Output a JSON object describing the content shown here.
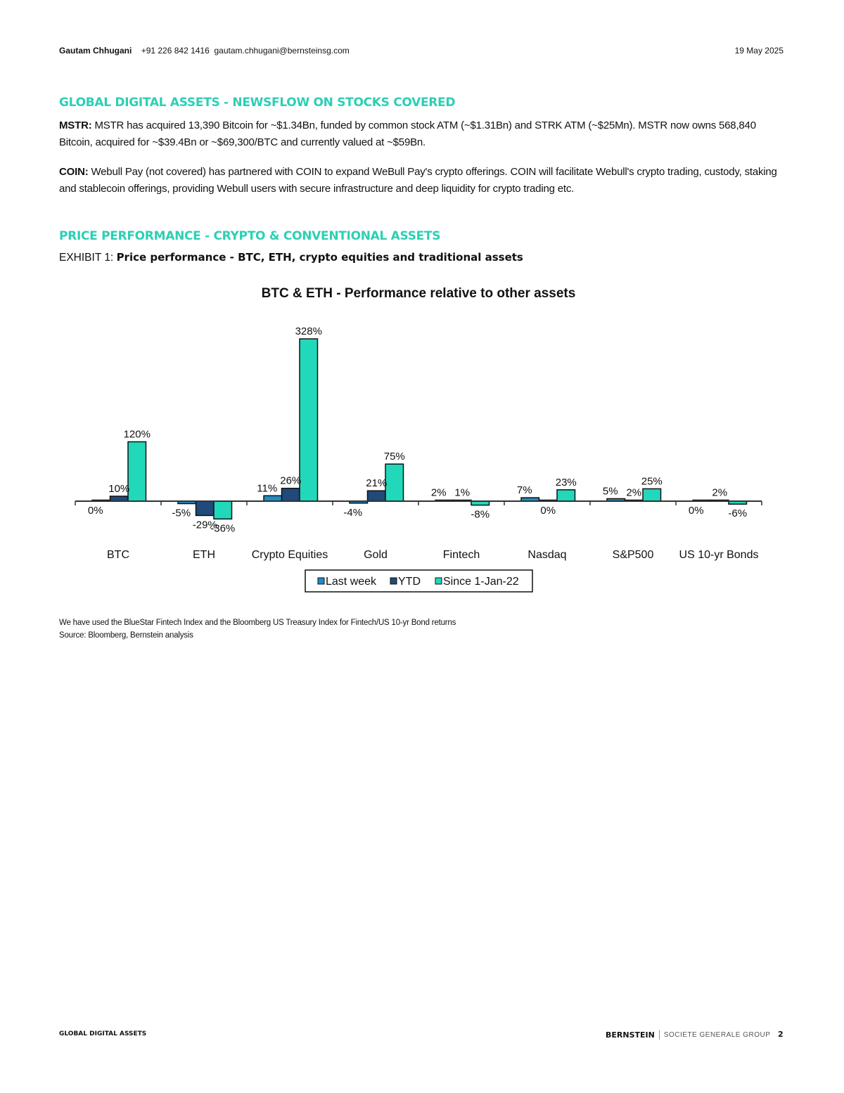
{
  "header": {
    "author": "Gautam Chhugani",
    "phone": "+91 226 842 1416",
    "email": "gautam.chhugani@bernsteinsg.com",
    "date": "19 May 2025"
  },
  "section1": {
    "title": "GLOBAL DIGITAL ASSETS - NEWSFLOW ON STOCKS COVERED",
    "items": [
      {
        "ticker": "MSTR:",
        "text": "MSTR has acquired 13,390 Bitcoin for ~$1.34Bn, funded by common stock ATM (~$1.31Bn) and STRK ATM (~$25Mn). MSTR now owns 568,840 Bitcoin, acquired for ~$39.4Bn or ~$69,300/BTC and currently valued at ~$59Bn."
      },
      {
        "ticker": "COIN:",
        "text": "Webull Pay (not covered) has partnered with COIN to expand WeBull Pay's crypto offerings. COIN will facilitate Webull's crypto trading, custody, staking and stablecoin offerings, providing Webull users with secure infrastructure and deep liquidity for crypto trading etc."
      }
    ]
  },
  "section2": {
    "title": "PRICE PERFORMANCE - CRYPTO & CONVENTIONAL ASSETS",
    "exhibit_label": "EXHIBIT 1:",
    "exhibit_title": "Price performance - BTC, ETH, crypto equities and traditional assets"
  },
  "chart_data": {
    "type": "bar",
    "title": "BTC & ETH - Performance relative to other assets",
    "categories": [
      "BTC",
      "ETH",
      "Crypto Equities",
      "Gold",
      "Fintech",
      "Nasdaq",
      "S&P500",
      "US 10-yr Bonds"
    ],
    "series": [
      {
        "name": "Last week",
        "color": "#1f8cc4",
        "values": [
          0,
          -5,
          11,
          -4,
          2,
          7,
          5,
          0
        ]
      },
      {
        "name": "YTD",
        "color": "#1f4a7a",
        "values": [
          10,
          -29,
          26,
          21,
          1,
          0,
          2,
          2
        ]
      },
      {
        "name": "Since 1-Jan-22",
        "color": "#22d8bb",
        "values": [
          120,
          -36,
          328,
          75,
          -8,
          23,
          25,
          -6
        ]
      }
    ],
    "unit": "%",
    "ylim": [
      -40,
      330
    ],
    "grid": false,
    "legend": "bottom-center"
  },
  "notes": {
    "line1": "We have used the BlueStar Fintech Index and the Bloomberg US Treasury Index for Fintech/US 10-yr Bond returns",
    "line2": "Source: Bloomberg, Bernstein analysis"
  },
  "footer": {
    "left": "GLOBAL DIGITAL ASSETS",
    "brand": "BERNSTEIN",
    "group": "SOCIETE GENERALE GROUP",
    "page": "2"
  }
}
